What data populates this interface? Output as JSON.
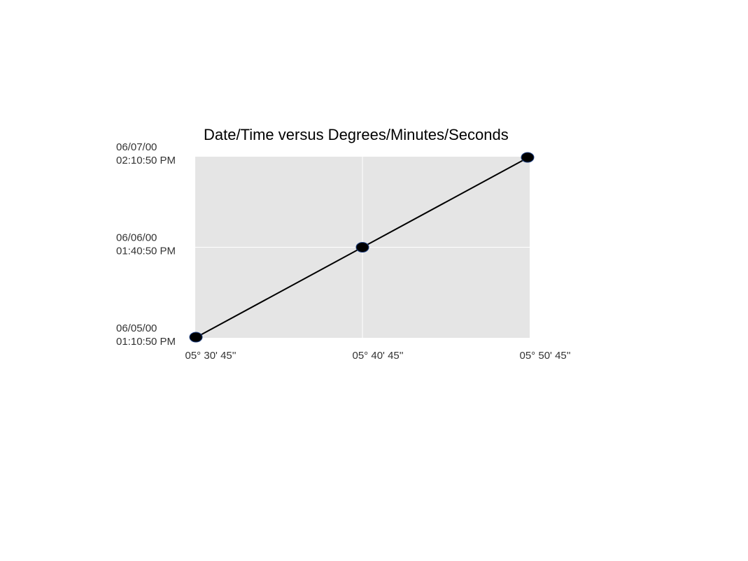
{
  "chart_data": {
    "type": "line",
    "title": "Date/Time versus Degrees/Minutes/Seconds",
    "xlabel": "",
    "ylabel": "",
    "grid": true,
    "x_ticks": [
      "05° 30' 45''",
      "05° 40' 45''",
      "05° 50' 45''"
    ],
    "y_ticks": [
      {
        "date": "06/05/00",
        "time": "01:10:50 PM"
      },
      {
        "date": "06/06/00",
        "time": "01:40:50 PM"
      },
      {
        "date": "06/07/00",
        "time": "02:10:50 PM"
      }
    ],
    "xlim": [
      "05° 30' 45''",
      "05° 50' 45''"
    ],
    "ylim": [
      "06/05/00 01:10:50 PM",
      "06/07/00 02:10:50 PM"
    ],
    "series": [
      {
        "points": [
          {
            "x": "05° 30' 45''",
            "y": "06/05/00 01:10:50 PM"
          },
          {
            "x": "05° 40' 45''",
            "y": "06/06/00 01:40:50 PM"
          },
          {
            "x": "05° 50' 45''",
            "y": "06/07/00 02:10:50 PM"
          }
        ]
      }
    ],
    "colors": {
      "plot_background": "#e5e5e5",
      "grid": "#ffffff",
      "line": "#000000",
      "marker_fill": "#000000",
      "marker_edge": "#1f3f7f"
    }
  }
}
